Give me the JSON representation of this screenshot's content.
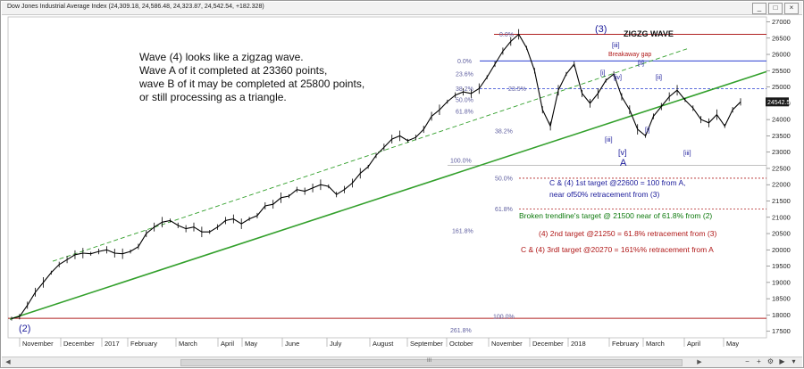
{
  "window": {
    "title": "Dow Jones Industrial Average Index (24,309.18, 24,586.48, 24,323.87, 24,542.54, +182.328)",
    "buttons": [
      "_",
      "□",
      "×"
    ]
  },
  "chart_data": {
    "type": "line",
    "title": "ZIGZG WAVE",
    "ylim": [
      17300,
      27150
    ],
    "y_ticks": [
      17500,
      18000,
      18500,
      19000,
      19500,
      20000,
      20500,
      21000,
      21500,
      22000,
      22500,
      23000,
      23500,
      24000,
      24500,
      25000,
      25500,
      26000,
      26500,
      27000
    ],
    "y_tick_labels": [
      "17500",
      "18000",
      "18500",
      "19000",
      "19500",
      "20000",
      "20500",
      "21000",
      "21500",
      "22000",
      "22500",
      "23000",
      "23500",
      "24000",
      "24500",
      "25000",
      "25500",
      "26000",
      "26500",
      "27000"
    ],
    "x_tick_labels": [
      "November",
      "December",
      "2017",
      "February",
      "March",
      "April",
      "May",
      "June",
      "July",
      "August",
      "September",
      "October",
      "November",
      "December",
      "2018",
      "February",
      "March",
      "April",
      "May"
    ],
    "last_price_label": "24542.54",
    "series": [
      {
        "values": [
          [
            0,
            17890
          ],
          [
            1,
            17950
          ],
          [
            2,
            18300
          ],
          [
            3,
            18700
          ],
          [
            4,
            19000
          ],
          [
            5,
            19300
          ],
          [
            6,
            19550
          ],
          [
            7,
            19700
          ],
          [
            8,
            19850
          ],
          [
            9,
            19900
          ],
          [
            10,
            19880
          ],
          [
            11,
            19950
          ],
          [
            12,
            20000
          ],
          [
            13,
            19900
          ],
          [
            14,
            19880
          ],
          [
            15,
            19950
          ],
          [
            16,
            20100
          ],
          [
            17,
            20500
          ],
          [
            18,
            20700
          ],
          [
            19,
            20850
          ],
          [
            20,
            20900
          ],
          [
            21,
            20750
          ],
          [
            22,
            20650
          ],
          [
            23,
            20700
          ],
          [
            24,
            20550
          ],
          [
            25,
            20550
          ],
          [
            26,
            20700
          ],
          [
            27,
            20900
          ],
          [
            28,
            20950
          ],
          [
            29,
            20800
          ],
          [
            30,
            20950
          ],
          [
            31,
            21050
          ],
          [
            32,
            21350
          ],
          [
            33,
            21400
          ],
          [
            34,
            21600
          ],
          [
            35,
            21650
          ],
          [
            36,
            21850
          ],
          [
            37,
            21800
          ],
          [
            38,
            21900
          ],
          [
            39,
            22000
          ],
          [
            40,
            21950
          ],
          [
            41,
            21700
          ],
          [
            42,
            21850
          ],
          [
            43,
            22050
          ],
          [
            44,
            22350
          ],
          [
            45,
            22550
          ],
          [
            46,
            22900
          ],
          [
            47,
            23150
          ],
          [
            48,
            23400
          ],
          [
            49,
            23500
          ],
          [
            50,
            23350
          ],
          [
            51,
            23450
          ],
          [
            52,
            23700
          ],
          [
            53,
            24100
          ],
          [
            54,
            24300
          ],
          [
            55,
            24550
          ],
          [
            56,
            24750
          ],
          [
            57,
            24850
          ],
          [
            58,
            24800
          ],
          [
            59,
            24950
          ],
          [
            60,
            25300
          ],
          [
            61,
            25700
          ],
          [
            62,
            26100
          ],
          [
            63,
            26400
          ],
          [
            64,
            26616
          ],
          [
            65,
            26200
          ],
          [
            66,
            25500
          ],
          [
            67,
            24300
          ],
          [
            68,
            23800
          ],
          [
            69,
            24900
          ],
          [
            70,
            25400
          ],
          [
            71,
            25700
          ],
          [
            72,
            24800
          ],
          [
            73,
            24500
          ],
          [
            74,
            24800
          ],
          [
            75,
            25200
          ],
          [
            76,
            25400
          ],
          [
            77,
            24700
          ],
          [
            78,
            24300
          ],
          [
            79,
            23700
          ],
          [
            80,
            23500
          ],
          [
            81,
            24100
          ],
          [
            82,
            24400
          ],
          [
            83,
            24700
          ],
          [
            84,
            24900
          ],
          [
            85,
            24600
          ],
          [
            86,
            24350
          ],
          [
            87,
            24000
          ],
          [
            88,
            23900
          ],
          [
            89,
            24150
          ],
          [
            90,
            23800
          ],
          [
            91,
            24300
          ],
          [
            92,
            24542
          ]
        ]
      }
    ],
    "wave_labels": {
      "w3": "(3)",
      "w2": "(2)",
      "iii": "[iii]",
      "i": "[i]",
      "iv": "[iv]",
      "ii": "[ii]",
      "iii_low": "[iii]",
      "v": "[v]",
      "A": "A",
      "i_b": "[i]",
      "iii_b": "[iii]",
      "ii_b": "[ii]"
    },
    "fib_levels_upper": [
      {
        "label": "0.0%",
        "value": 26616
      },
      {
        "label": "0.0%",
        "value": 25800
      }
    ],
    "fib_levels_mid": [
      {
        "label": "23.6%",
        "value": 25400
      },
      {
        "label": "38.2%",
        "value": 24950
      },
      {
        "label": "50.0%",
        "value": 24600
      },
      {
        "label": "61.8%",
        "value": 24250
      },
      {
        "label": "23.5%",
        "value": 24950
      },
      {
        "label": "38.2%",
        "value": 23650
      },
      {
        "label": "100.0%",
        "value": 22600
      }
    ],
    "fib_levels_lower": [
      {
        "label": "50.0%",
        "value": 22200
      },
      {
        "label": "61.8%",
        "value": 21250
      },
      {
        "label": "161.8%",
        "value": 20270
      },
      {
        "label": "100.0%",
        "value": 17900
      },
      {
        "label": "261.8%",
        "value": 17530
      }
    ],
    "annotations": {
      "breakaway": "Breakaway gap",
      "main_text": [
        "Wave (4) looks like a zigzag wave.",
        "Wave A of it completed at 23360 points,",
        "wave B of it may be completed at 25800 points,",
        "or still processing as a triangle."
      ],
      "target1_line1": "C & (4) 1st target @22600 = 100 from A,",
      "target1_line2": "near of50% retracement from (3)",
      "trendline_target": "Broken trendline's target @ 21500 near of 61.8% from (2)",
      "target2": "(4) 2nd target @21250 = 61.8% retracement from (3)",
      "target3": "C & (4) 3rdl target @20270 = 161%% retracement from A"
    },
    "colors": {
      "price": "#000000",
      "trendline": "#33a02c",
      "channel": "#33a02c",
      "top_line": "#b02020",
      "bline": "#2a3fd0",
      "text_blue": "#1a1a9a",
      "text_green": "#0d7a0d",
      "text_red": "#b01818"
    }
  },
  "scroll": {
    "label": "III"
  }
}
